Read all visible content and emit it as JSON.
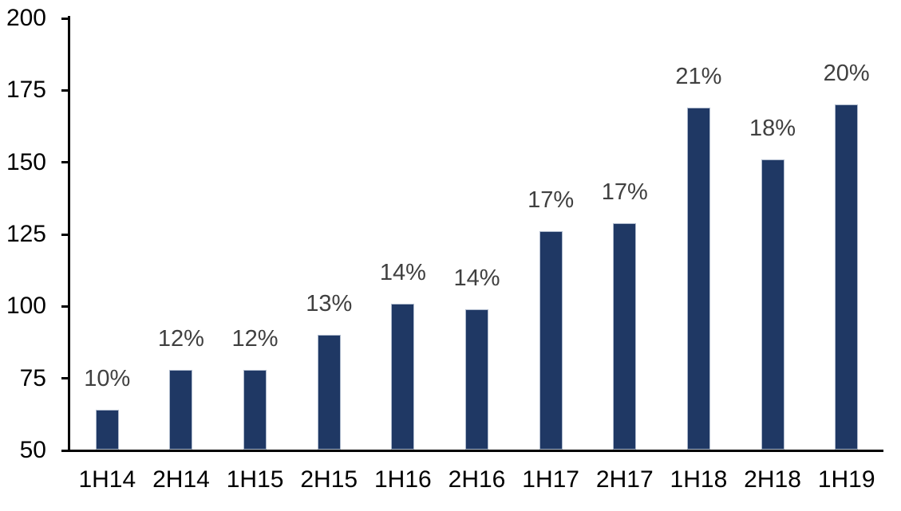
{
  "chart_data": {
    "type": "bar",
    "categories": [
      "1H14",
      "2H14",
      "1H15",
      "2H15",
      "1H16",
      "2H16",
      "1H17",
      "2H17",
      "1H18",
      "2H18",
      "1H19"
    ],
    "values": [
      64,
      78,
      78,
      90,
      101,
      99,
      126,
      129,
      169,
      151,
      170
    ],
    "data_labels": [
      "10%",
      "12%",
      "12%",
      "13%",
      "14%",
      "14%",
      "17%",
      "17%",
      "21%",
      "18%",
      "20%"
    ],
    "ylim": [
      50,
      200
    ],
    "yticks": [
      50,
      75,
      100,
      125,
      150,
      175,
      200
    ],
    "grid": false,
    "legend": false,
    "colors": {
      "bar_fill": "#1F3864",
      "bar_border": "#AEBACD",
      "data_label": "#404040",
      "axis_label": "#000000",
      "axis_line": "#000000",
      "background": "#FFFFFF"
    }
  }
}
